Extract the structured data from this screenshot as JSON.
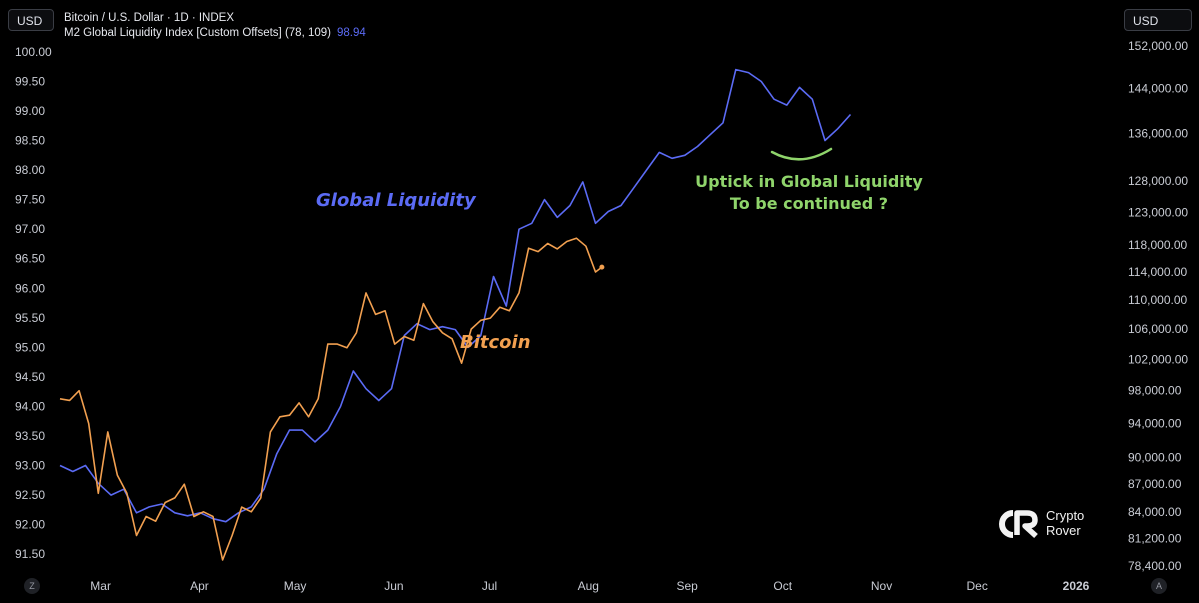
{
  "header": {
    "currency_left": "USD",
    "currency_right": "USD",
    "title": "Bitcoin / U.S. Dollar · 1D · INDEX",
    "indicator": "M2 Global Liquidity Index [Custom Offsets] (78, 109)",
    "indicator_value": "98.94"
  },
  "logo": {
    "line1": "Crypto",
    "line2": "Rover"
  },
  "buttons": {
    "z": "Z",
    "a": "A"
  },
  "colors": {
    "liquidity": "#5b6bf5",
    "bitcoin": "#f2a050",
    "annotation": "#8fd46b",
    "background": "#000000"
  },
  "chart_data": {
    "type": "line",
    "left_axis": {
      "label": "",
      "range": [
        91.3,
        100.1
      ],
      "ticks": [
        "100.00",
        "99.50",
        "99.00",
        "98.50",
        "98.00",
        "97.50",
        "97.00",
        "96.50",
        "96.00",
        "95.50",
        "95.00",
        "94.50",
        "94.00",
        "93.50",
        "93.00",
        "92.50",
        "92.00",
        "91.50"
      ]
    },
    "right_axis": {
      "label": "",
      "scale": "log",
      "range": [
        78400,
        152000
      ],
      "ticks": [
        "152,000.00",
        "144,000.00",
        "136,000.00",
        "128,000.00",
        "123,000.00",
        "118,000.00",
        "114,000.00",
        "110,000.00",
        "106,000.00",
        "102,000.00",
        "98,000.00",
        "94,000.00",
        "90,000.00",
        "87,000.00",
        "84,000.00",
        "81,200.00",
        "78,400.00"
      ]
    },
    "x_ticks": [
      "Mar",
      "Apr",
      "May",
      "Jun",
      "Jul",
      "Aug",
      "Sep",
      "Oct",
      "Nov",
      "Dec",
      "2026"
    ],
    "x_range": [
      "2025-02-15",
      "2026-01-01"
    ],
    "series": [
      {
        "name": "Global Liquidity",
        "axis": "left",
        "points": [
          [
            "2025-02-15",
            93.0
          ],
          [
            "2025-02-19",
            92.9
          ],
          [
            "2025-02-23",
            93.0
          ],
          [
            "2025-02-27",
            92.7
          ],
          [
            "2025-03-03",
            92.5
          ],
          [
            "2025-03-07",
            92.6
          ],
          [
            "2025-03-11",
            92.2
          ],
          [
            "2025-03-15",
            92.3
          ],
          [
            "2025-03-19",
            92.35
          ],
          [
            "2025-03-23",
            92.2
          ],
          [
            "2025-03-27",
            92.15
          ],
          [
            "2025-03-31",
            92.2
          ],
          [
            "2025-04-04",
            92.1
          ],
          [
            "2025-04-08",
            92.05
          ],
          [
            "2025-04-12",
            92.2
          ],
          [
            "2025-04-16",
            92.3
          ],
          [
            "2025-04-20",
            92.6
          ],
          [
            "2025-04-24",
            93.2
          ],
          [
            "2025-04-28",
            93.6
          ],
          [
            "2025-05-02",
            93.6
          ],
          [
            "2025-05-06",
            93.4
          ],
          [
            "2025-05-10",
            93.6
          ],
          [
            "2025-05-14",
            94.0
          ],
          [
            "2025-05-18",
            94.6
          ],
          [
            "2025-05-22",
            94.3
          ],
          [
            "2025-05-26",
            94.1
          ],
          [
            "2025-05-30",
            94.3
          ],
          [
            "2025-06-03",
            95.2
          ],
          [
            "2025-06-07",
            95.4
          ],
          [
            "2025-06-11",
            95.3
          ],
          [
            "2025-06-15",
            95.35
          ],
          [
            "2025-06-19",
            95.3
          ],
          [
            "2025-06-23",
            95.0
          ],
          [
            "2025-06-27",
            95.2
          ],
          [
            "2025-07-01",
            96.2
          ],
          [
            "2025-07-05",
            95.7
          ],
          [
            "2025-07-09",
            97.0
          ],
          [
            "2025-07-13",
            97.1
          ],
          [
            "2025-07-17",
            97.5
          ],
          [
            "2025-07-21",
            97.2
          ],
          [
            "2025-07-25",
            97.4
          ],
          [
            "2025-07-29",
            97.8
          ],
          [
            "2025-08-02",
            97.1
          ],
          [
            "2025-08-06",
            97.3
          ],
          [
            "2025-08-10",
            97.4
          ],
          [
            "2025-08-14",
            97.7
          ],
          [
            "2025-08-18",
            98.0
          ],
          [
            "2025-08-22",
            98.3
          ],
          [
            "2025-08-26",
            98.2
          ],
          [
            "2025-08-30",
            98.25
          ],
          [
            "2025-09-03",
            98.4
          ],
          [
            "2025-09-07",
            98.6
          ],
          [
            "2025-09-11",
            98.8
          ],
          [
            "2025-09-15",
            99.7
          ],
          [
            "2025-09-19",
            99.65
          ],
          [
            "2025-09-23",
            99.5
          ],
          [
            "2025-09-27",
            99.2
          ],
          [
            "2025-10-01",
            99.1
          ],
          [
            "2025-10-05",
            99.4
          ],
          [
            "2025-10-09",
            99.2
          ],
          [
            "2025-10-13",
            98.5
          ],
          [
            "2025-10-17",
            98.7
          ],
          [
            "2025-10-21",
            98.94
          ]
        ]
      },
      {
        "name": "Bitcoin",
        "axis": "right",
        "points": [
          [
            "2025-02-15",
            97000
          ],
          [
            "2025-02-18",
            96800
          ],
          [
            "2025-02-21",
            98000
          ],
          [
            "2025-02-24",
            94000
          ],
          [
            "2025-02-27",
            86000
          ],
          [
            "2025-03-02",
            93000
          ],
          [
            "2025-03-05",
            88000
          ],
          [
            "2025-03-08",
            86000
          ],
          [
            "2025-03-11",
            81500
          ],
          [
            "2025-03-14",
            83500
          ],
          [
            "2025-03-17",
            83000
          ],
          [
            "2025-03-20",
            85000
          ],
          [
            "2025-03-23",
            85500
          ],
          [
            "2025-03-26",
            87000
          ],
          [
            "2025-03-29",
            83500
          ],
          [
            "2025-04-01",
            84000
          ],
          [
            "2025-04-04",
            83500
          ],
          [
            "2025-04-07",
            79000
          ],
          [
            "2025-04-10",
            81500
          ],
          [
            "2025-04-13",
            84500
          ],
          [
            "2025-04-16",
            84000
          ],
          [
            "2025-04-19",
            85500
          ],
          [
            "2025-04-22",
            93000
          ],
          [
            "2025-04-25",
            94800
          ],
          [
            "2025-04-28",
            95000
          ],
          [
            "2025-05-01",
            96500
          ],
          [
            "2025-05-04",
            94800
          ],
          [
            "2025-05-07",
            97000
          ],
          [
            "2025-05-10",
            104000
          ],
          [
            "2025-05-13",
            104000
          ],
          [
            "2025-05-16",
            103500
          ],
          [
            "2025-05-19",
            105500
          ],
          [
            "2025-05-22",
            111000
          ],
          [
            "2025-05-25",
            108000
          ],
          [
            "2025-05-28",
            108500
          ],
          [
            "2025-05-31",
            104000
          ],
          [
            "2025-06-03",
            105000
          ],
          [
            "2025-06-06",
            104500
          ],
          [
            "2025-06-09",
            109500
          ],
          [
            "2025-06-12",
            107000
          ],
          [
            "2025-06-15",
            105500
          ],
          [
            "2025-06-18",
            104700
          ],
          [
            "2025-06-21",
            101500
          ],
          [
            "2025-06-24",
            106000
          ],
          [
            "2025-06-27",
            107200
          ],
          [
            "2025-06-30",
            107500
          ],
          [
            "2025-07-03",
            109000
          ],
          [
            "2025-07-06",
            108500
          ],
          [
            "2025-07-09",
            111000
          ],
          [
            "2025-07-12",
            117500
          ],
          [
            "2025-07-15",
            117000
          ],
          [
            "2025-07-18",
            118200
          ],
          [
            "2025-07-21",
            117400
          ],
          [
            "2025-07-24",
            118500
          ],
          [
            "2025-07-27",
            119000
          ],
          [
            "2025-07-30",
            117800
          ],
          [
            "2025-08-02",
            114000
          ],
          [
            "2025-08-04",
            114700
          ]
        ]
      }
    ],
    "annotations": [
      "Global Liquidity",
      "Bitcoin",
      "Uptick in Global Liquidity",
      "To be continued ?"
    ],
    "grid": false
  }
}
